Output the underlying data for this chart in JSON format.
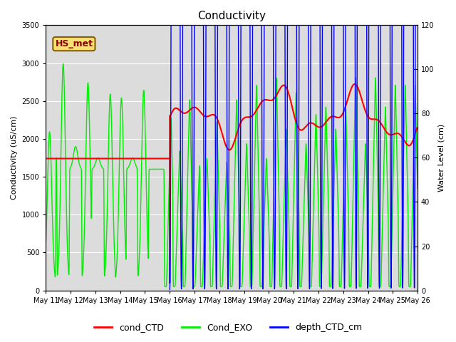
{
  "title": "Conductivity",
  "ylabel_left": "Conductivity (uS/cm)",
  "ylabel_right": "Water Level (cm)",
  "ylim_left": [
    0,
    3500
  ],
  "ylim_right": [
    0,
    120
  ],
  "plot_bg_color": "#dcdcdc",
  "fig_bg_color": "#ffffff",
  "label_box_text": "HS_met",
  "label_box_bg": "#f5e070",
  "label_box_edge": "#8b6000",
  "legend_labels": [
    "cond_CTD",
    "Cond_EXO",
    "depth_CTD_cm"
  ],
  "legend_colors": [
    "red",
    "#00ee00",
    "blue"
  ],
  "x_tick_labels": [
    "May 11",
    "May 12",
    "May 13",
    "May 14",
    "May 15",
    "May 16",
    "May 17",
    "May 18",
    "May 19",
    "May 20",
    "May 21",
    "May 22",
    "May 23",
    "May 24",
    "May 25",
    "May 26"
  ],
  "grid_color": "#ffffff",
  "title_fontsize": 11,
  "axis_fontsize": 8,
  "tick_fontsize": 7
}
